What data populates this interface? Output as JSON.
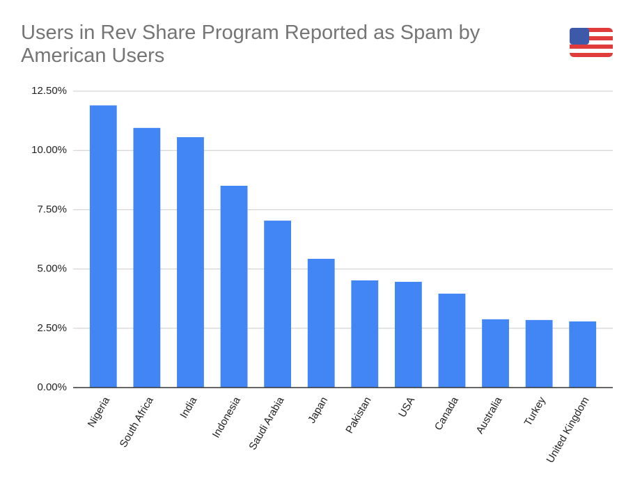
{
  "chart_data": {
    "type": "bar",
    "title": "Users in Rev Share Program Reported as Spam by American Users",
    "categories": [
      "Nigeria",
      "South Africa",
      "India",
      "Indonesia",
      "Saudi Arabia",
      "Japan",
      "Pakistan",
      "USA",
      "Canada",
      "Australia",
      "Turkey",
      "United Kingdom"
    ],
    "values": [
      11.9,
      10.95,
      10.56,
      8.51,
      7.04,
      5.43,
      4.52,
      4.46,
      3.96,
      2.88,
      2.85,
      2.79
    ],
    "color": "#4285f4",
    "ylim": [
      0,
      12.5
    ],
    "yticks": [
      {
        "value": 0,
        "label": "0.00%"
      },
      {
        "value": 2.5,
        "label": "2.50%"
      },
      {
        "value": 5,
        "label": "5.00%"
      },
      {
        "value": 7.5,
        "label": "7.50%"
      },
      {
        "value": 10,
        "label": "10.00%"
      },
      {
        "value": 12.5,
        "label": "12.50%"
      }
    ],
    "grid": true
  }
}
